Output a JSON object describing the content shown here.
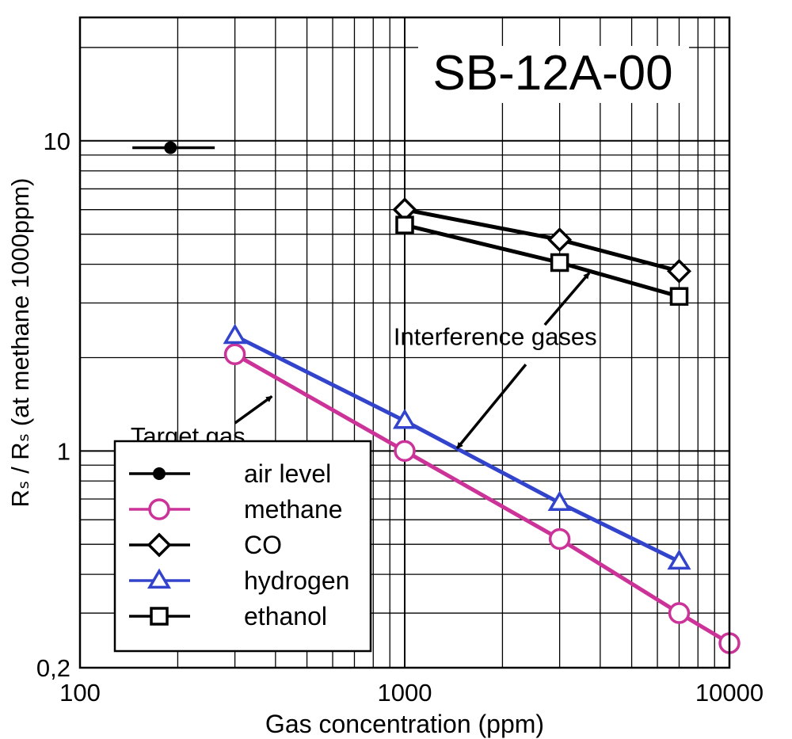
{
  "chart_data": {
    "type": "line",
    "title": "SB-12A-00",
    "xlabel": "Gas concentration (ppm)",
    "ylabel": "Rₛ / Rₛ (at methane 1000ppm)",
    "x_scale": "log",
    "y_scale": "log",
    "xlim": [
      100,
      10000
    ],
    "ylim": [
      0.2,
      25
    ],
    "x_ticks": [
      {
        "value": 100,
        "label": "100"
      },
      {
        "value": 1000,
        "label": "1000"
      },
      {
        "value": 10000,
        "label": "10000"
      }
    ],
    "y_ticks": [
      {
        "value": 0.2,
        "label": "0,2"
      },
      {
        "value": 1,
        "label": "1"
      },
      {
        "value": 10,
        "label": "10"
      }
    ],
    "grid": true,
    "legend_position": "bottom-left",
    "series": [
      {
        "name": "air level",
        "marker": "dot",
        "color": "#000000",
        "points": [
          {
            "x": 190,
            "y": 9.5
          }
        ],
        "x_error": [
          145,
          260
        ]
      },
      {
        "name": "methane",
        "marker": "circle",
        "color": "#cc3399",
        "points": [
          {
            "x": 300,
            "y": 2.05
          },
          {
            "x": 1000,
            "y": 1.0
          },
          {
            "x": 3000,
            "y": 0.52
          },
          {
            "x": 7000,
            "y": 0.3
          },
          {
            "x": 10000,
            "y": 0.24
          }
        ]
      },
      {
        "name": "CO",
        "marker": "diamond",
        "color": "#000000",
        "points": [
          {
            "x": 1000,
            "y": 6.0
          },
          {
            "x": 3000,
            "y": 4.8
          },
          {
            "x": 7000,
            "y": 3.8
          }
        ]
      },
      {
        "name": "hydrogen",
        "marker": "triangle",
        "color": "#3344cc",
        "points": [
          {
            "x": 300,
            "y": 2.35
          },
          {
            "x": 1000,
            "y": 1.25
          },
          {
            "x": 3000,
            "y": 0.68
          },
          {
            "x": 7000,
            "y": 0.44
          }
        ]
      },
      {
        "name": "ethanol",
        "marker": "square",
        "color": "#000000",
        "points": [
          {
            "x": 1000,
            "y": 5.35
          },
          {
            "x": 3000,
            "y": 4.05
          },
          {
            "x": 7000,
            "y": 3.15
          }
        ]
      }
    ],
    "annotations": [
      {
        "text": "Target gas",
        "label_at": {
          "x": 215,
          "y": 1.05
        },
        "arrow_from": {
          "x": 300,
          "y": 1.23
        },
        "arrow_to": {
          "x": 390,
          "y": 1.5
        }
      },
      {
        "text": "Interference gases",
        "label_at": {
          "x": 1900,
          "y": 2.2
        },
        "arrows": [
          {
            "from": {
              "x": 2700,
              "y": 2.55
            },
            "to": {
              "x": 3700,
              "y": 3.75
            }
          },
          {
            "from": {
              "x": 2360,
              "y": 1.9
            },
            "to": {
              "x": 1450,
              "y": 1.02
            }
          }
        ]
      }
    ]
  }
}
